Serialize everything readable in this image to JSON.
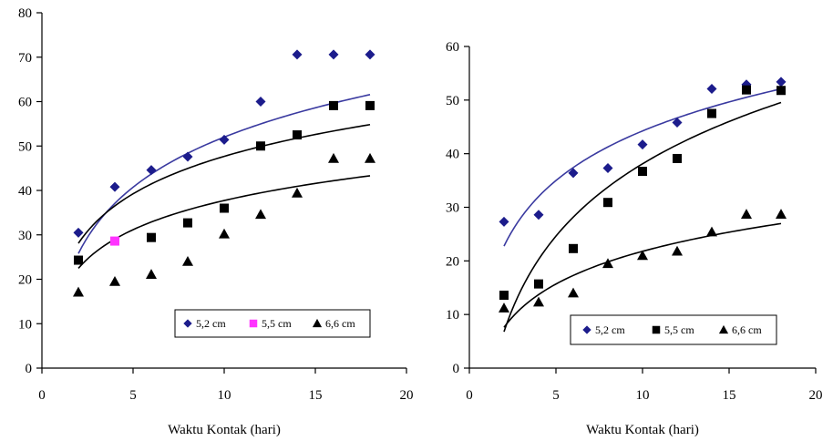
{
  "chart_data": [
    {
      "type": "scatter",
      "xlabel": "Waktu Kontak (hari)",
      "ylabel": "",
      "xlim": [
        0,
        20
      ],
      "ylim": [
        0,
        80
      ],
      "xticks": [
        0,
        5,
        10,
        15,
        20
      ],
      "yticks": [
        0,
        10,
        20,
        30,
        40,
        50,
        60,
        70,
        80
      ],
      "grid": false,
      "legend": "bottom-right, inside",
      "series": [
        {
          "name": "5,2 cm",
          "marker": "diamond",
          "color": "#1c1c8c",
          "trend_color": "#3a3aa0",
          "x": [
            2,
            4,
            6,
            8,
            10,
            12,
            14,
            16,
            18
          ],
          "y": [
            30.5,
            40.8,
            44.6,
            47.6,
            51.4,
            60.0,
            70.6,
            70.6,
            70.6
          ],
          "trend": {
            "type": "logarithmic",
            "a": 16.28,
            "b": 14.52
          }
        },
        {
          "name": "5,5 cm",
          "marker": "square",
          "color": "#000000",
          "legend_color": "#ff33ff",
          "trend_color": "#000000",
          "x": [
            2,
            4,
            6,
            8,
            10,
            12,
            14,
            16,
            18
          ],
          "y": [
            24.3,
            28.6,
            29.4,
            32.7,
            36.0,
            50.0,
            52.5,
            59.1,
            59.1
          ],
          "highlight": {
            "index": 1,
            "color": "#ff33ff"
          },
          "trend": {
            "type": "logarithmic",
            "a": 12.16,
            "b": 19.67
          }
        },
        {
          "name": "6,6 cm",
          "marker": "triangle",
          "color": "#000000",
          "trend_color": "#000000",
          "x": [
            2,
            4,
            6,
            8,
            10,
            12,
            14,
            16,
            18
          ],
          "y": [
            17.1,
            19.5,
            21.1,
            24.0,
            30.2,
            34.6,
            39.4,
            47.2,
            47.2
          ],
          "trend": {
            "type": "logarithmic",
            "a": 9.48,
            "b": 15.9
          }
        }
      ]
    },
    {
      "type": "scatter",
      "xlabel": "Waktu Kontak (hari)",
      "ylabel": "",
      "xlim": [
        0,
        20
      ],
      "ylim": [
        0,
        60
      ],
      "xticks": [
        0,
        5,
        10,
        15,
        20
      ],
      "yticks": [
        0,
        10,
        20,
        30,
        40,
        50,
        60
      ],
      "grid": false,
      "legend": "bottom-right, inside",
      "series": [
        {
          "name": "5,2 cm",
          "marker": "diamond",
          "color": "#1c1c8c",
          "trend_color": "#3a3aa0",
          "x": [
            2,
            4,
            6,
            8,
            10,
            12,
            14,
            16,
            18
          ],
          "y": [
            27.3,
            28.6,
            36.4,
            37.3,
            41.7,
            45.8,
            52.1,
            52.9,
            53.4
          ],
          "trend": {
            "type": "logarithmic",
            "a": 13.35,
            "b": 13.5
          }
        },
        {
          "name": "5,5 cm",
          "marker": "square",
          "color": "#000000",
          "trend_color": "#000000",
          "x": [
            2,
            4,
            6,
            8,
            10,
            12,
            14,
            16,
            18
          ],
          "y": [
            13.6,
            15.7,
            22.3,
            30.9,
            36.7,
            39.1,
            47.5,
            51.9,
            51.8
          ],
          "trend": {
            "type": "logarithmic",
            "a": 19.46,
            "b": -6.7
          }
        },
        {
          "name": "6,6 cm",
          "marker": "triangle",
          "color": "#000000",
          "trend_color": "#000000",
          "x": [
            2,
            4,
            6,
            8,
            10,
            12,
            14,
            16,
            18
          ],
          "y": [
            11.2,
            12.3,
            14.0,
            19.5,
            21.0,
            21.8,
            25.4,
            28.7,
            28.7
          ],
          "trend": {
            "type": "logarithmic",
            "a": 8.81,
            "b": 1.5
          }
        }
      ]
    }
  ]
}
